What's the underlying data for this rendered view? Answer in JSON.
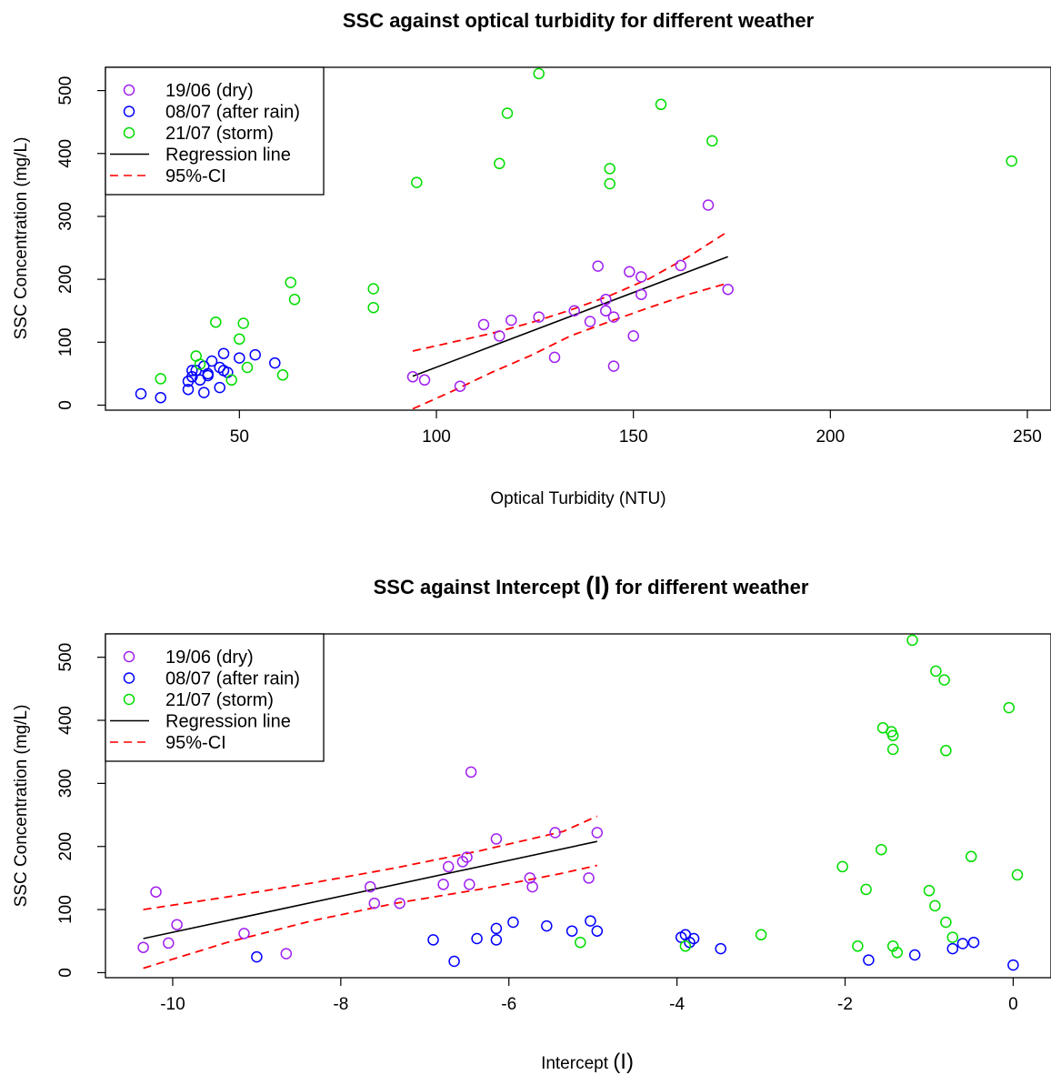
{
  "chart_data": [
    {
      "type": "scatter",
      "title": "SSC against optical turbidity for different weather",
      "xlabel": "Optical Turbidity (NTU)",
      "ylabel": "SSC Concentration (mg/L)",
      "xlim": [
        16,
        256
      ],
      "ylim": [
        -8,
        537
      ],
      "xticks": [
        50,
        100,
        150,
        200,
        250
      ],
      "yticks": [
        0,
        100,
        200,
        300,
        400,
        500
      ],
      "grid": false,
      "legend_position": "top-left",
      "legend": [
        "19/06 (dry)",
        "08/07 (after rain)",
        "21/07 (storm)",
        "Regression line",
        "95%-CI"
      ],
      "colors": {
        "dry": "#a020f0",
        "after_rain": "#0000ff",
        "storm": "#00dd00",
        "regression": "#000000",
        "ci": "#ff0000"
      },
      "series": [
        {
          "name": "19/06 (dry)",
          "color": "#a020f0",
          "points": [
            [
              94,
              45
            ],
            [
              97,
              40
            ],
            [
              106,
              30
            ],
            [
              112,
              128
            ],
            [
              116,
              110
            ],
            [
              119,
              135
            ],
            [
              126,
              140
            ],
            [
              130,
              76
            ],
            [
              135,
              150
            ],
            [
              139,
              133
            ],
            [
              141,
              221
            ],
            [
              143,
              168
            ],
            [
              143,
              150
            ],
            [
              145,
              140
            ],
            [
              145,
              62
            ],
            [
              149,
              212
            ],
            [
              150,
              110
            ],
            [
              152,
              176
            ],
            [
              152,
              204
            ],
            [
              162,
              222
            ],
            [
              169,
              318
            ],
            [
              174,
              184
            ]
          ]
        },
        {
          "name": "08/07 (after rain)",
          "color": "#0000ff",
          "points": [
            [
              25,
              18
            ],
            [
              30,
              12
            ],
            [
              37,
              25
            ],
            [
              37,
              38
            ],
            [
              38,
              45
            ],
            [
              38,
              55
            ],
            [
              39,
              55
            ],
            [
              40,
              40
            ],
            [
              41,
              20
            ],
            [
              41,
              62
            ],
            [
              42,
              47
            ],
            [
              42,
              50
            ],
            [
              43,
              70
            ],
            [
              45,
              28
            ],
            [
              45,
              60
            ],
            [
              46,
              82
            ],
            [
              46,
              55
            ],
            [
              47,
              52
            ],
            [
              50,
              75
            ],
            [
              54,
              80
            ],
            [
              59,
              67
            ]
          ]
        },
        {
          "name": "21/07 (storm)",
          "color": "#00dd00",
          "points": [
            [
              30,
              42
            ],
            [
              39,
              78
            ],
            [
              40,
              65
            ],
            [
              44,
              132
            ],
            [
              48,
              40
            ],
            [
              50,
              105
            ],
            [
              51,
              130
            ],
            [
              52,
              60
            ],
            [
              61,
              48
            ],
            [
              63,
              195
            ],
            [
              64,
              168
            ],
            [
              84,
              185
            ],
            [
              84,
              155
            ],
            [
              95,
              354
            ],
            [
              116,
              384
            ],
            [
              118,
              464
            ],
            [
              126,
              527
            ],
            [
              144,
              376
            ],
            [
              144,
              352
            ],
            [
              157,
              478
            ],
            [
              170,
              420
            ],
            [
              246,
              388
            ]
          ]
        }
      ],
      "regression": {
        "x": [
          94,
          174
        ],
        "y": [
          46,
          236
        ]
      },
      "ci_upper": {
        "x": [
          94,
          104,
          114,
          124,
          134,
          144,
          154,
          164,
          174
        ],
        "y": [
          86,
          100,
          114,
          131,
          151,
          174,
          201,
          236,
          276
        ]
      },
      "ci_lower": {
        "x": [
          94,
          104,
          114,
          124,
          134,
          144,
          154,
          164,
          174
        ],
        "y": [
          -6,
          22,
          52,
          79,
          110,
          133,
          155,
          176,
          194
        ]
      }
    },
    {
      "type": "scatter",
      "title": "SSC against Intercept",
      "title_symbol": "(I)",
      "title_suffix": "for different weather",
      "xlabel": "Intercept",
      "xlabel_symbol": "(I)",
      "ylabel": "SSC Concentration (mg/L)",
      "xlim": [
        -10.8,
        0.45
      ],
      "ylim": [
        -8,
        537
      ],
      "xticks": [
        -10,
        -8,
        -6,
        -4,
        -2,
        0
      ],
      "yticks": [
        0,
        100,
        200,
        300,
        400,
        500
      ],
      "grid": false,
      "legend_position": "top-left",
      "legend": [
        "19/06 (dry)",
        "08/07 (after rain)",
        "21/07 (storm)",
        "Regression line",
        "95%-CI"
      ],
      "colors": {
        "dry": "#a020f0",
        "after_rain": "#0000ff",
        "storm": "#00dd00",
        "regression": "#000000",
        "ci": "#ff0000"
      },
      "series": [
        {
          "name": "19/06 (dry)",
          "color": "#a020f0",
          "points": [
            [
              -10.35,
              40
            ],
            [
              -10.2,
              128
            ],
            [
              -10.05,
              47
            ],
            [
              -9.95,
              76
            ],
            [
              -9.15,
              62
            ],
            [
              -8.65,
              30
            ],
            [
              -7.65,
              136
            ],
            [
              -7.6,
              110
            ],
            [
              -7.3,
              110
            ],
            [
              -6.78,
              140
            ],
            [
              -6.72,
              168
            ],
            [
              -6.55,
              176
            ],
            [
              -6.5,
              183
            ],
            [
              -6.45,
              318
            ],
            [
              -6.47,
              140
            ],
            [
              -6.15,
              212
            ],
            [
              -5.75,
              150
            ],
            [
              -5.72,
              136
            ],
            [
              -5.45,
              222
            ],
            [
              -5.05,
              150
            ],
            [
              -4.95,
              222
            ]
          ]
        },
        {
          "name": "08/07 (after rain)",
          "color": "#0000ff",
          "points": [
            [
              -9,
              25
            ],
            [
              -6.9,
              52
            ],
            [
              -6.65,
              18
            ],
            [
              -6.38,
              54
            ],
            [
              -6.15,
              70
            ],
            [
              -6.15,
              52
            ],
            [
              -5.95,
              80
            ],
            [
              -5.55,
              74
            ],
            [
              -5.25,
              66
            ],
            [
              -5.03,
              82
            ],
            [
              -4.95,
              66
            ],
            [
              -3.95,
              56
            ],
            [
              -3.9,
              60
            ],
            [
              -3.85,
              48
            ],
            [
              -3.8,
              54
            ],
            [
              -3.48,
              38
            ],
            [
              -1.72,
              20
            ],
            [
              -1.17,
              28
            ],
            [
              -0.72,
              38
            ],
            [
              -0.6,
              46
            ],
            [
              -0.47,
              48
            ],
            [
              0,
              12
            ]
          ]
        },
        {
          "name": "21/07 (storm)",
          "color": "#00dd00",
          "points": [
            [
              -5.15,
              48
            ],
            [
              -3.9,
              42
            ],
            [
              -3,
              60
            ],
            [
              -2.03,
              168
            ],
            [
              -1.85,
              42
            ],
            [
              -1.75,
              132
            ],
            [
              -1.57,
              195
            ],
            [
              -1.55,
              388
            ],
            [
              -1.45,
              382
            ],
            [
              -1.43,
              376
            ],
            [
              -1.43,
              354
            ],
            [
              -1.38,
              32
            ],
            [
              -1.43,
              42
            ],
            [
              -1.2,
              527
            ],
            [
              -1.0,
              130
            ],
            [
              -0.93,
              106
            ],
            [
              -0.92,
              478
            ],
            [
              -0.8,
              80
            ],
            [
              -0.82,
              464
            ],
            [
              -0.8,
              352
            ],
            [
              -0.72,
              56
            ],
            [
              -0.5,
              184
            ],
            [
              -0.05,
              420
            ],
            [
              0.05,
              155
            ]
          ]
        }
      ],
      "regression": {
        "x": [
          -10.35,
          -4.95
        ],
        "y": [
          54,
          208
        ]
      },
      "ci_upper": {
        "x": [
          -10.35,
          -9.35,
          -8.35,
          -7.35,
          -6.35,
          -5.35,
          -4.95
        ],
        "y": [
          100,
          120,
          142,
          166,
          193,
          224,
          248
        ]
      },
      "ci_lower": {
        "x": [
          -10.35,
          -9.35,
          -8.35,
          -7.35,
          -6.35,
          -5.35,
          -4.95
        ],
        "y": [
          7,
          48,
          82,
          110,
          132,
          158,
          170
        ]
      }
    }
  ]
}
